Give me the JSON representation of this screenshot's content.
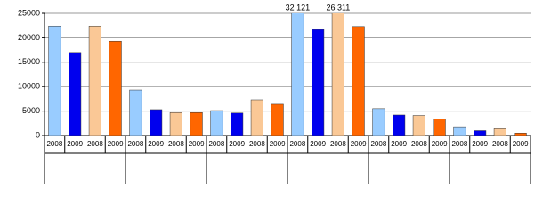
{
  "chart_data": {
    "type": "bar",
    "categories": [
      "2008",
      "2009",
      "2008",
      "2009",
      "2008",
      "2009",
      "2008",
      "2009",
      "2008",
      "2009",
      "2008",
      "2009",
      "2008",
      "2009",
      "2008",
      "2009",
      "2008",
      "2009",
      "2008",
      "2009",
      "2008",
      "2009",
      "2008",
      "2009"
    ],
    "values": [
      22400,
      17000,
      22400,
      19300,
      9300,
      5300,
      4700,
      4700,
      5100,
      4600,
      7300,
      6400,
      32121,
      21700,
      26311,
      22300,
      5500,
      4200,
      4100,
      3400,
      1800,
      1000,
      1400,
      500
    ],
    "value_labels": [
      null,
      null,
      null,
      null,
      null,
      null,
      null,
      null,
      null,
      null,
      null,
      null,
      "32 121",
      null,
      "26 311",
      null,
      null,
      null,
      null,
      null,
      null,
      null,
      null,
      null
    ],
    "colors": [
      "#99ccff",
      "#0000ee",
      "#fac896",
      "#ff6600"
    ],
    "ylim": [
      0,
      25000
    ],
    "yticks": [
      0,
      5000,
      10000,
      15000,
      20000,
      25000
    ],
    "grid": true
  }
}
